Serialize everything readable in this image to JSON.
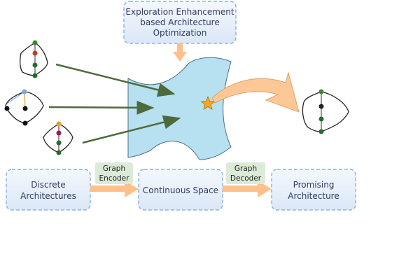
{
  "top_box": {
    "lines": [
      "Exploration Enhancement",
      "based Architecture",
      "Optimization"
    ]
  },
  "boxes": {
    "discrete": [
      "Discrete",
      "Architectures"
    ],
    "continuous": [
      "Continuous Space"
    ],
    "promising": [
      "Promising",
      "Architecture"
    ]
  },
  "tags": {
    "encoder": [
      "Graph",
      "Encoder"
    ],
    "decoder": [
      "Graph",
      "Decoder"
    ]
  },
  "colors": {
    "box_fill": "#e8f0fa",
    "box_border": "#8fb4e3",
    "orange_arrow": "#ffc08a",
    "tag_fill": "#dcebd8",
    "surface_fill": "#b7e0f0",
    "dark_arrow": "#4d6b3a",
    "star": "#f5a623"
  }
}
